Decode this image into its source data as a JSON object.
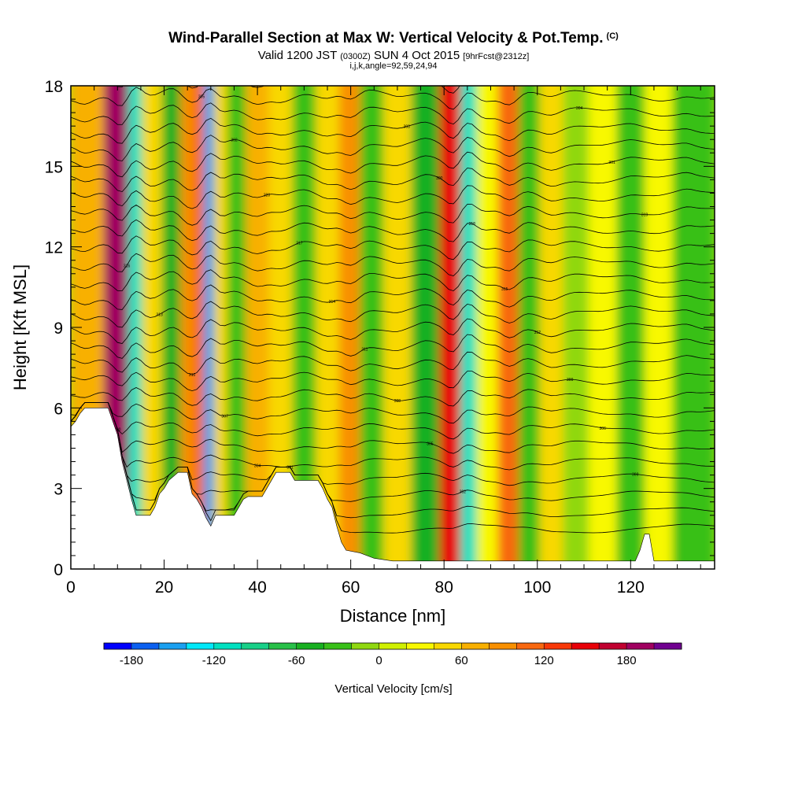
{
  "header": {
    "title": "Wind-Parallel Section at Max W: Vertical Velocity & Pot.Temp.",
    "copyright": "(C)",
    "valid_prefix": "Valid 1200 JST",
    "valid_utc": "(0300Z)",
    "valid_date": "SUN 4 Oct 2015",
    "forecast": "[9hrFcst@2312z]",
    "indices": "i,j,k,angle=92,59,24,94"
  },
  "chart_data": {
    "type": "heatmap",
    "xlabel": "Distance [nm]",
    "ylabel": "Height [Kft MSL]",
    "xlim": [
      0,
      138
    ],
    "ylim": [
      0,
      18
    ],
    "x_ticks": [
      0,
      20,
      40,
      60,
      80,
      100,
      120
    ],
    "y_ticks": [
      0,
      3,
      6,
      9,
      12,
      15,
      18
    ],
    "colorbar": {
      "label": "Vertical Velocity [cm/s]",
      "tick_values": [
        -180,
        -120,
        -60,
        0,
        60,
        120,
        180
      ],
      "levels": [
        -200,
        -180,
        -160,
        -140,
        -120,
        -100,
        -80,
        -60,
        -40,
        -20,
        0,
        20,
        40,
        60,
        80,
        100,
        120,
        140,
        160,
        180,
        200,
        220
      ],
      "colors": [
        "#0000ff",
        "#0b60f0",
        "#1aa0f0",
        "#00e8f8",
        "#00e0c0",
        "#18d088",
        "#28c048",
        "#18b020",
        "#38c018",
        "#90d810",
        "#d0f000",
        "#f8f800",
        "#f8d800",
        "#f8b000",
        "#f89000",
        "#f86810",
        "#f83808",
        "#e80008",
        "#c00030",
        "#a00060",
        "#700090"
      ]
    },
    "velocity_bands": [
      {
        "x": 3,
        "w": 72
      },
      {
        "x": 11,
        "w": 180
      },
      {
        "x": 13.5,
        "w": -120
      },
      {
        "x": 17,
        "w": 50
      },
      {
        "x": 22,
        "w": -60
      },
      {
        "x": 25,
        "w": 80
      },
      {
        "x": 27.5,
        "w": 110
      },
      {
        "x": 29.5,
        "w": -150
      },
      {
        "x": 32,
        "w": 40
      },
      {
        "x": 35,
        "w": -40
      },
      {
        "x": 40,
        "w": 60
      },
      {
        "x": 45,
        "w": 40
      },
      {
        "x": 50,
        "w": -40
      },
      {
        "x": 55,
        "w": 50
      },
      {
        "x": 60,
        "w": 90
      },
      {
        "x": 64,
        "w": -30
      },
      {
        "x": 70,
        "w": 40
      },
      {
        "x": 76,
        "w": -50
      },
      {
        "x": 82,
        "w": 150
      },
      {
        "x": 85,
        "w": -120
      },
      {
        "x": 89,
        "w": 30
      },
      {
        "x": 94,
        "w": 100
      },
      {
        "x": 98,
        "w": -40
      },
      {
        "x": 103,
        "w": 50
      },
      {
        "x": 108,
        "w": -20
      },
      {
        "x": 114,
        "w": 20
      },
      {
        "x": 120,
        "w": -30
      },
      {
        "x": 126,
        "w": 20
      },
      {
        "x": 132,
        "w": -40
      }
    ],
    "terrain": [
      {
        "x": 0,
        "h": 5.3
      },
      {
        "x": 1,
        "h": 5.5
      },
      {
        "x": 2,
        "h": 5.8
      },
      {
        "x": 3,
        "h": 6.0
      },
      {
        "x": 8,
        "h": 6.0
      },
      {
        "x": 9,
        "h": 5.5
      },
      {
        "x": 10,
        "h": 5.0
      },
      {
        "x": 11,
        "h": 4.0
      },
      {
        "x": 12,
        "h": 3.3
      },
      {
        "x": 13,
        "h": 2.6
      },
      {
        "x": 14,
        "h": 2.0
      },
      {
        "x": 17,
        "h": 2.0
      },
      {
        "x": 18,
        "h": 2.3
      },
      {
        "x": 19,
        "h": 2.8
      },
      {
        "x": 20,
        "h": 3.0
      },
      {
        "x": 21,
        "h": 3.3
      },
      {
        "x": 23,
        "h": 3.6
      },
      {
        "x": 25,
        "h": 3.6
      },
      {
        "x": 26,
        "h": 2.8
      },
      {
        "x": 27,
        "h": 2.6
      },
      {
        "x": 28,
        "h": 2.3
      },
      {
        "x": 29,
        "h": 1.9
      },
      {
        "x": 30,
        "h": 1.6
      },
      {
        "x": 31,
        "h": 2.0
      },
      {
        "x": 35,
        "h": 2.0
      },
      {
        "x": 36,
        "h": 2.3
      },
      {
        "x": 37,
        "h": 2.6
      },
      {
        "x": 38,
        "h": 2.7
      },
      {
        "x": 41,
        "h": 2.7
      },
      {
        "x": 42,
        "h": 3.0
      },
      {
        "x": 43,
        "h": 3.3
      },
      {
        "x": 44,
        "h": 3.6
      },
      {
        "x": 47,
        "h": 3.6
      },
      {
        "x": 48,
        "h": 3.3
      },
      {
        "x": 53,
        "h": 3.3
      },
      {
        "x": 54,
        "h": 3.0
      },
      {
        "x": 55,
        "h": 2.6
      },
      {
        "x": 56,
        "h": 2.3
      },
      {
        "x": 57,
        "h": 1.6
      },
      {
        "x": 58,
        "h": 1.0
      },
      {
        "x": 59,
        "h": 0.7
      },
      {
        "x": 62,
        "h": 0.6
      },
      {
        "x": 65,
        "h": 0.4
      },
      {
        "x": 69,
        "h": 0.3
      },
      {
        "x": 121,
        "h": 0.3
      },
      {
        "x": 122,
        "h": 0.7
      },
      {
        "x": 123,
        "h": 1.3
      },
      {
        "x": 124,
        "h": 1.3
      },
      {
        "x": 125,
        "h": 0.3
      },
      {
        "x": 138,
        "h": 0.3
      }
    ],
    "contour_labels": [
      "300",
      "301",
      "302",
      "303",
      "304",
      "305",
      "306",
      "307",
      "308",
      "309",
      "310",
      "311",
      "312",
      "313",
      "314",
      "315",
      "316",
      "317",
      "318",
      "319",
      "320"
    ]
  }
}
